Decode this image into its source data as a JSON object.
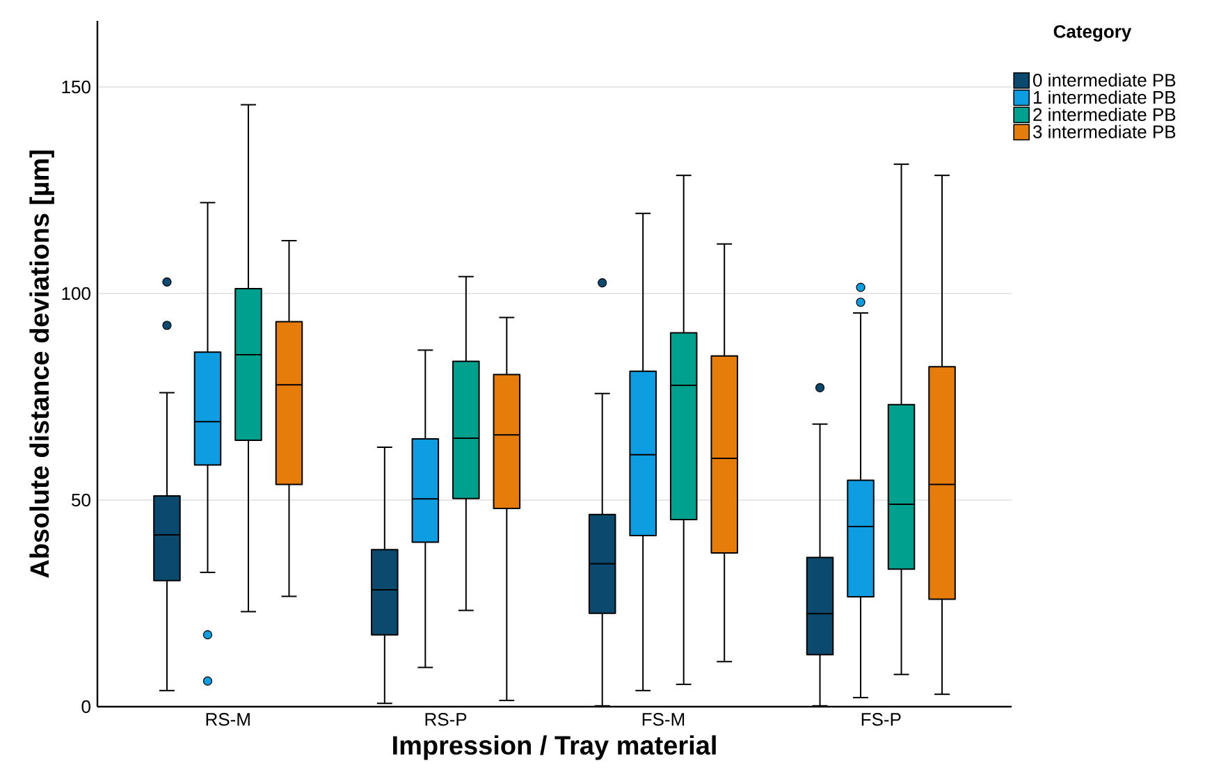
{
  "chart_data": {
    "type": "box",
    "xlabel": "Impression / Tray material",
    "ylabel": "Absolute distance deviations [µm]",
    "legend_title": "Category",
    "categories": [
      "RS-M",
      "RS-P",
      "FS-M",
      "FS-P"
    ],
    "ylim": [
      0,
      166
    ],
    "yticks": [
      0,
      50,
      100,
      150
    ],
    "grid": "y",
    "legend": "top right",
    "series": [
      {
        "name": "0 intermediate PB",
        "color": "#0b4a6e",
        "boxes": [
          {
            "low": 3.9,
            "q1": 30.5,
            "median": 41.6,
            "q3": 51,
            "high": 76,
            "outliers": [
              102.8,
              92.3
            ]
          },
          {
            "low": 0.8,
            "q1": 17.4,
            "median": 28.3,
            "q3": 38,
            "high": 62.8
          },
          {
            "low": 0.2,
            "q1": 22.6,
            "median": 34.6,
            "q3": 46.5,
            "high": 75.8,
            "outliers": [
              102.6
            ]
          },
          {
            "low": 0.2,
            "q1": 12.6,
            "median": 22.5,
            "q3": 36.1,
            "high": 68.4,
            "outliers": [
              77.2
            ]
          }
        ]
      },
      {
        "name": "1 intermediate PB",
        "color": "#0f9de2",
        "boxes": [
          {
            "low": 32.5,
            "q1": 58.5,
            "median": 69,
            "q3": 85.8,
            "high": 122,
            "outliers": [
              17.4,
              6.2
            ]
          },
          {
            "low": 9.5,
            "q1": 39.8,
            "median": 50.3,
            "q3": 64.8,
            "high": 86.3
          },
          {
            "low": 3.9,
            "q1": 41.4,
            "median": 61,
            "q3": 81.2,
            "high": 119.4
          },
          {
            "low": 2.2,
            "q1": 26.6,
            "median": 43.6,
            "q3": 54.8,
            "high": 95.3,
            "outliers": [
              101.5,
              97.9
            ]
          }
        ]
      },
      {
        "name": "2 intermediate PB",
        "color": "#00a08e",
        "boxes": [
          {
            "low": 23,
            "q1": 64.5,
            "median": 85.2,
            "q3": 101.2,
            "high": 145.7
          },
          {
            "low": 23.3,
            "q1": 50.4,
            "median": 65,
            "q3": 83.6,
            "high": 104.1
          },
          {
            "low": 5.4,
            "q1": 45.3,
            "median": 77.8,
            "q3": 90.5,
            "high": 128.6
          },
          {
            "low": 7.8,
            "q1": 33.3,
            "median": 49,
            "q3": 73.1,
            "high": 131.3
          }
        ]
      },
      {
        "name": "3 intermediate PB",
        "color": "#e67c0a",
        "boxes": [
          {
            "low": 26.7,
            "q1": 53.8,
            "median": 77.9,
            "q3": 93.2,
            "high": 112.8
          },
          {
            "low": 1.5,
            "q1": 48,
            "median": 65.8,
            "q3": 80.4,
            "high": 94.2
          },
          {
            "low": 10.9,
            "q1": 37.2,
            "median": 60.1,
            "q3": 84.9,
            "high": 112
          },
          {
            "low": 3,
            "q1": 26,
            "median": 53.8,
            "q3": 82.3,
            "high": 128.6
          }
        ]
      }
    ]
  }
}
